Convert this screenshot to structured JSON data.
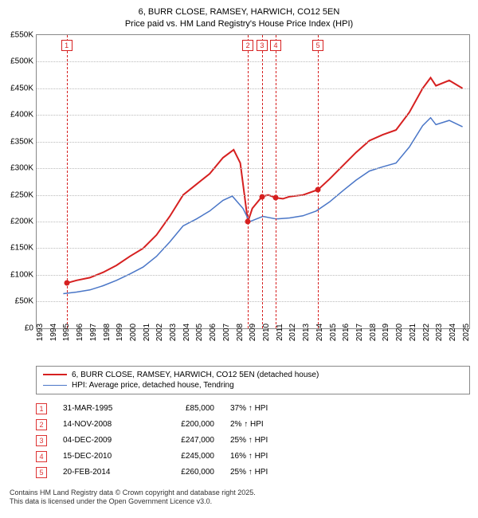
{
  "title": {
    "line1": "6, BURR CLOSE, RAMSEY, HARWICH, CO12 5EN",
    "line2": "Price paid vs. HM Land Registry's House Price Index (HPI)"
  },
  "chart": {
    "type": "line",
    "background_color": "#ffffff",
    "grid_color": "#bbbbbb",
    "border_color": "#888888",
    "x_min": 1993,
    "x_max": 2025.5,
    "x_ticks": [
      1993,
      1994,
      1995,
      1996,
      1997,
      1998,
      1999,
      2000,
      2001,
      2002,
      2003,
      2004,
      2005,
      2006,
      2007,
      2008,
      2009,
      2010,
      2011,
      2012,
      2013,
      2014,
      2015,
      2016,
      2017,
      2018,
      2019,
      2020,
      2021,
      2022,
      2023,
      2024,
      2025
    ],
    "y_min": 0,
    "y_max": 550,
    "y_ticks": [
      0,
      50,
      100,
      150,
      200,
      250,
      300,
      350,
      400,
      450,
      500,
      550
    ],
    "y_tick_labels": [
      "£0",
      "£50K",
      "£100K",
      "£150K",
      "£200K",
      "£250K",
      "£300K",
      "£350K",
      "£400K",
      "£450K",
      "£500K",
      "£550K"
    ],
    "series": [
      {
        "name": "6, BURR CLOSE, RAMSEY, HARWICH, CO12 5EN (detached house)",
        "color": "#d62020",
        "width": 2,
        "points": [
          [
            1995.3,
            85
          ],
          [
            1996,
            90
          ],
          [
            1997,
            95
          ],
          [
            1998,
            105
          ],
          [
            1999,
            118
          ],
          [
            2000,
            135
          ],
          [
            2001,
            150
          ],
          [
            2002,
            175
          ],
          [
            2003,
            210
          ],
          [
            2004,
            250
          ],
          [
            2005,
            270
          ],
          [
            2006,
            290
          ],
          [
            2007,
            320
          ],
          [
            2007.8,
            335
          ],
          [
            2008.3,
            310
          ],
          [
            2008.87,
            200
          ],
          [
            2009.2,
            225
          ],
          [
            2009.93,
            247
          ],
          [
            2010.4,
            250
          ],
          [
            2010.96,
            245
          ],
          [
            2011.5,
            243
          ],
          [
            2012,
            247
          ],
          [
            2013,
            250
          ],
          [
            2014.14,
            260
          ],
          [
            2015,
            280
          ],
          [
            2016,
            305
          ],
          [
            2017,
            330
          ],
          [
            2018,
            352
          ],
          [
            2019,
            363
          ],
          [
            2020,
            372
          ],
          [
            2021,
            405
          ],
          [
            2022,
            450
          ],
          [
            2022.6,
            470
          ],
          [
            2023,
            455
          ],
          [
            2024,
            465
          ],
          [
            2025,
            450
          ]
        ]
      },
      {
        "name": "HPI: Average price, detached house, Tendring",
        "color": "#4a76c7",
        "width": 1.5,
        "points": [
          [
            1995,
            65
          ],
          [
            1996,
            68
          ],
          [
            1997,
            72
          ],
          [
            1998,
            80
          ],
          [
            1999,
            90
          ],
          [
            2000,
            102
          ],
          [
            2001,
            115
          ],
          [
            2002,
            135
          ],
          [
            2003,
            162
          ],
          [
            2004,
            192
          ],
          [
            2005,
            205
          ],
          [
            2006,
            220
          ],
          [
            2007,
            240
          ],
          [
            2007.7,
            248
          ],
          [
            2008.5,
            225
          ],
          [
            2009,
            200
          ],
          [
            2009.5,
            205
          ],
          [
            2010,
            210
          ],
          [
            2011,
            205
          ],
          [
            2012,
            207
          ],
          [
            2013,
            211
          ],
          [
            2014,
            220
          ],
          [
            2015,
            237
          ],
          [
            2016,
            258
          ],
          [
            2017,
            278
          ],
          [
            2018,
            295
          ],
          [
            2019,
            303
          ],
          [
            2020,
            310
          ],
          [
            2021,
            340
          ],
          [
            2022,
            380
          ],
          [
            2022.6,
            395
          ],
          [
            2023,
            382
          ],
          [
            2024,
            390
          ],
          [
            2025,
            378
          ]
        ]
      }
    ],
    "sale_markers": [
      {
        "n": 1,
        "x": 1995.25,
        "y": 85
      },
      {
        "n": 2,
        "x": 2008.87,
        "y": 200
      },
      {
        "n": 3,
        "x": 2009.93,
        "y": 247
      },
      {
        "n": 4,
        "x": 2010.96,
        "y": 245
      },
      {
        "n": 5,
        "x": 2014.14,
        "y": 260
      }
    ],
    "marker_color": "#d62020"
  },
  "legend": {
    "items": [
      {
        "label": "6, BURR CLOSE, RAMSEY, HARWICH, CO12 5EN (detached house)",
        "color": "#d62020",
        "width": 2
      },
      {
        "label": "HPI: Average price, detached house, Tendring",
        "color": "#4a76c7",
        "width": 1.5
      }
    ]
  },
  "sales": [
    {
      "n": 1,
      "date": "31-MAR-1995",
      "price": "£85,000",
      "pct": "37% ↑ HPI"
    },
    {
      "n": 2,
      "date": "14-NOV-2008",
      "price": "£200,000",
      "pct": "2% ↑ HPI"
    },
    {
      "n": 3,
      "date": "04-DEC-2009",
      "price": "£247,000",
      "pct": "25% ↑ HPI"
    },
    {
      "n": 4,
      "date": "15-DEC-2010",
      "price": "£245,000",
      "pct": "16% ↑ HPI"
    },
    {
      "n": 5,
      "date": "20-FEB-2014",
      "price": "£260,000",
      "pct": "25% ↑ HPI"
    }
  ],
  "footer": {
    "line1": "Contains HM Land Registry data © Crown copyright and database right 2025.",
    "line2": "This data is licensed under the Open Government Licence v3.0."
  }
}
